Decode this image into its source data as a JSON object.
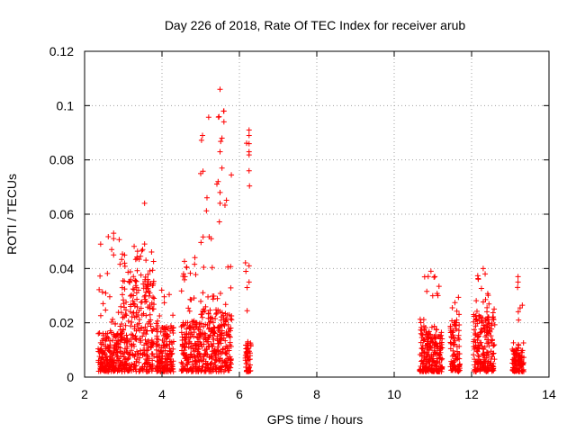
{
  "chart_data": {
    "type": "scatter",
    "title": "Day 226 of 2018, Rate Of TEC Index for receiver arub",
    "xlabel": "GPS time / hours",
    "ylabel": "ROTI / TECUs",
    "xlim": [
      2,
      14
    ],
    "ylim": [
      0,
      0.12
    ],
    "x_ticks": [
      "2",
      "4",
      "6",
      "8",
      "10",
      "12",
      "14"
    ],
    "y_ticks": [
      "0",
      "0.02",
      "0.04",
      "0.06",
      "0.08",
      "0.1",
      "0.12"
    ],
    "grid": true,
    "marker": "+",
    "color": "#ff0000",
    "clusters": [
      {
        "x_start": 2.35,
        "x_end": 2.95,
        "base_max": 0.016,
        "tail_max": 0.053
      },
      {
        "x_start": 2.95,
        "x_end": 3.8,
        "base_max": 0.035,
        "tail_max": 0.049
      },
      {
        "x_start": 3.85,
        "x_end": 4.3,
        "base_max": 0.018,
        "tail_max": 0.034
      },
      {
        "x_start": 4.5,
        "x_end": 5.0,
        "base_max": 0.02,
        "tail_max": 0.044
      },
      {
        "x_start": 5.0,
        "x_end": 5.8,
        "base_max": 0.025,
        "tail_max": 0.105
      },
      {
        "x_start": 6.15,
        "x_end": 6.3,
        "base_max": 0.013,
        "tail_max": 0.091
      },
      {
        "x_start": 10.65,
        "x_end": 11.25,
        "base_max": 0.016,
        "tail_max": 0.039
      },
      {
        "x_start": 11.45,
        "x_end": 11.7,
        "base_max": 0.02,
        "tail_max": 0.031
      },
      {
        "x_start": 12.05,
        "x_end": 12.6,
        "base_max": 0.022,
        "tail_max": 0.04
      },
      {
        "x_start": 13.05,
        "x_end": 13.35,
        "base_max": 0.01,
        "tail_max": 0.037
      }
    ],
    "highlight_points": [
      {
        "x": 3.55,
        "y": 0.064
      },
      {
        "x": 5.5,
        "y": 0.106
      },
      {
        "x": 5.6,
        "y": 0.098
      },
      {
        "x": 5.6,
        "y": 0.094
      },
      {
        "x": 5.55,
        "y": 0.088
      },
      {
        "x": 5.5,
        "y": 0.083
      },
      {
        "x": 5.55,
        "y": 0.077
      },
      {
        "x": 5.45,
        "y": 0.072
      },
      {
        "x": 5.5,
        "y": 0.068
      },
      {
        "x": 5.5,
        "y": 0.064
      },
      {
        "x": 6.25,
        "y": 0.091
      },
      {
        "x": 6.25,
        "y": 0.089
      },
      {
        "x": 6.25,
        "y": 0.086
      },
      {
        "x": 6.25,
        "y": 0.083
      },
      {
        "x": 6.25,
        "y": 0.076
      },
      {
        "x": 6.25,
        "y": 0.041
      },
      {
        "x": 6.25,
        "y": 0.035
      },
      {
        "x": 6.2,
        "y": 0.033
      },
      {
        "x": 2.75,
        "y": 0.053
      },
      {
        "x": 2.75,
        "y": 0.051
      },
      {
        "x": 2.7,
        "y": 0.047
      },
      {
        "x": 2.75,
        "y": 0.045
      },
      {
        "x": 3.55,
        "y": 0.049
      },
      {
        "x": 3.5,
        "y": 0.047
      },
      {
        "x": 4.85,
        "y": 0.044
      },
      {
        "x": 10.95,
        "y": 0.039
      },
      {
        "x": 11.05,
        "y": 0.037
      },
      {
        "x": 12.3,
        "y": 0.04
      },
      {
        "x": 12.35,
        "y": 0.038
      },
      {
        "x": 13.2,
        "y": 0.037
      },
      {
        "x": 13.2,
        "y": 0.035
      }
    ]
  }
}
